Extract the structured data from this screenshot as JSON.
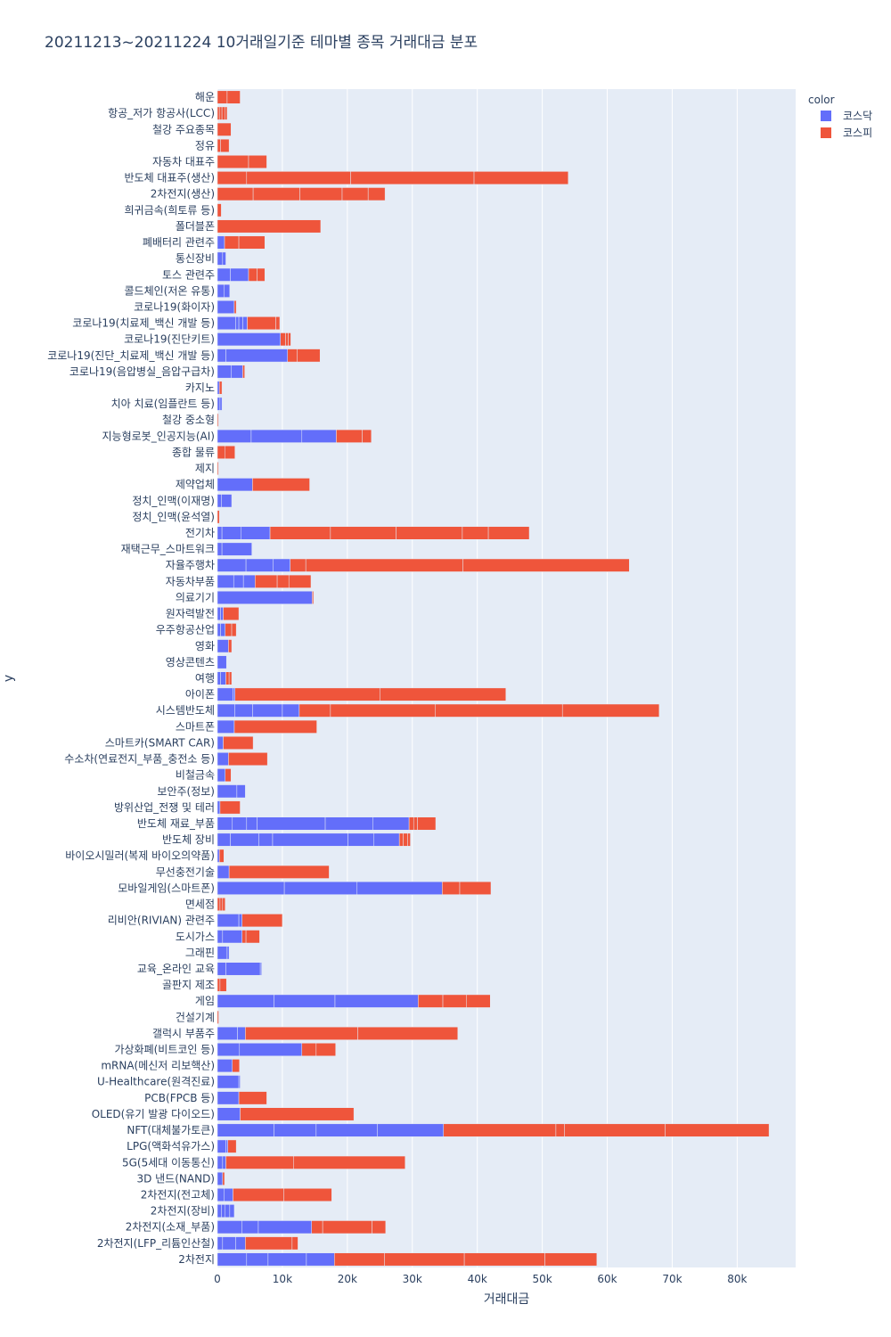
{
  "chart_data": {
    "type": "bar",
    "orientation": "horizontal",
    "barmode": "stack",
    "title": "20211213~20211224 10거래일기준 테마별 종목 거래대금 분포",
    "xlabel": "거래대금",
    "ylabel": "y",
    "xlim": [
      0,
      89000
    ],
    "xticks": [
      0,
      10000,
      20000,
      30000,
      40000,
      50000,
      60000,
      70000,
      80000
    ],
    "xtick_labels": [
      "0",
      "10k",
      "20k",
      "30k",
      "40k",
      "50k",
      "60k",
      "70k",
      "80k"
    ],
    "grid": true,
    "legend": {
      "title": "color",
      "placement": "top-right"
    },
    "series": [
      {
        "name": "코스닥",
        "color": "#636efa"
      },
      {
        "name": "코스피",
        "color": "#ef553b"
      }
    ],
    "categories": [
      {
        "label": "해운",
        "kosdaq": [],
        "kospi": [
          1500,
          2000
        ]
      },
      {
        "label": "항공_저가 항공사(LCC)",
        "kosdaq": [],
        "kospi": [
          300,
          400,
          500,
          300
        ]
      },
      {
        "label": "철강 주요종목",
        "kosdaq": [],
        "kospi": [
          2100
        ]
      },
      {
        "label": "정유",
        "kosdaq": [],
        "kospi": [
          500,
          1300
        ]
      },
      {
        "label": "자동차 대표주",
        "kosdaq": [],
        "kospi": [
          4800,
          2800
        ]
      },
      {
        "label": "반도체 대표주(생산)",
        "kosdaq": [],
        "kospi": [
          4500,
          16000,
          19000,
          14500
        ]
      },
      {
        "label": "2차전지(생산)",
        "kosdaq": [],
        "kospi": [
          5500,
          7200,
          6500,
          4000,
          2600
        ]
      },
      {
        "label": "희귀금속(희토류 등)",
        "kosdaq": [],
        "kospi": [
          600
        ]
      },
      {
        "label": "폴더블폰",
        "kosdaq": [],
        "kospi": [
          15900
        ]
      },
      {
        "label": "폐배터리 관련주",
        "kosdaq": [
          1100
        ],
        "kospi": [
          2200,
          4000
        ]
      },
      {
        "label": "통신장비",
        "kosdaq": [
          800,
          500
        ],
        "kospi": []
      },
      {
        "label": "토스 관련주",
        "kosdaq": [
          2000,
          2800
        ],
        "kospi": [
          1300,
          1200
        ]
      },
      {
        "label": "콜드체인(저온 유통)",
        "kosdaq": [
          1000,
          900
        ],
        "kospi": []
      },
      {
        "label": "코로나19(화이자)",
        "kosdaq": [
          2600
        ],
        "kospi": [
          300
        ]
      },
      {
        "label": "코로나19(치료제_백신 개발 등)",
        "kosdaq": [
          2800,
          500,
          600,
          700
        ],
        "kospi": [
          4400,
          600
        ]
      },
      {
        "label": "코로나19(진단키트)",
        "kosdaq": [
          9700
        ],
        "kospi": [
          800,
          400,
          400
        ]
      },
      {
        "label": "코로나19(진단_치료제_백신 개발 등)",
        "kosdaq": [
          1300,
          9500
        ],
        "kospi": [
          1500,
          3500
        ]
      },
      {
        "label": "코로나19(음압병실_음압구급차)",
        "kosdaq": [
          2100,
          1800
        ],
        "kospi": [
          300
        ]
      },
      {
        "label": "카지노",
        "kosdaq": [
          300
        ],
        "kospi": [
          400
        ]
      },
      {
        "label": "치아 치료(임플란트 등)",
        "kosdaq": [
          400,
          300
        ],
        "kospi": []
      },
      {
        "label": "철강 중소형",
        "kosdaq": [],
        "kospi": [
          150
        ]
      },
      {
        "label": "지능형로봇_인공지능(AI)",
        "kosdaq": [
          5200,
          7800,
          5300
        ],
        "kospi": [
          4000,
          1400
        ]
      },
      {
        "label": "종합 물류",
        "kosdaq": [],
        "kospi": [
          1200,
          1500
        ]
      },
      {
        "label": "제지",
        "kosdaq": [],
        "kospi": [
          150
        ]
      },
      {
        "label": "제약업체",
        "kosdaq": [
          5400
        ],
        "kospi": [
          8800
        ]
      },
      {
        "label": "정치_인맥(이재명)",
        "kosdaq": [
          600,
          1600
        ],
        "kospi": []
      },
      {
        "label": "정치_인맥(윤석열)",
        "kosdaq": [],
        "kospi": [
          300
        ]
      },
      {
        "label": "전기차",
        "kosdaq": [
          700,
          2900,
          4500
        ],
        "kospi": [
          9300,
          10100,
          10200,
          4000,
          6300
        ]
      },
      {
        "label": "재택근무_스마트워크",
        "kosdaq": [
          700,
          4600
        ],
        "kospi": []
      },
      {
        "label": "자율주행차",
        "kosdaq": [
          4400,
          4200,
          2600
        ],
        "kospi": [
          2400,
          24200,
          25600
        ]
      },
      {
        "label": "자동차부품",
        "kosdaq": [
          2500,
          1500,
          1800
        ],
        "kospi": [
          3400,
          1800,
          3400
        ]
      },
      {
        "label": "의료기기",
        "kosdaq": [
          14600
        ],
        "kospi": [
          200
        ]
      },
      {
        "label": "원자력발전",
        "kosdaq": [
          500,
          400
        ],
        "kospi": [
          2400
        ]
      },
      {
        "label": "우주항공산업",
        "kosdaq": [
          500,
          700
        ],
        "kospi": [
          1000,
          700
        ]
      },
      {
        "label": "영화",
        "kosdaq": [
          1700
        ],
        "kospi": [
          500
        ]
      },
      {
        "label": "영상콘텐츠",
        "kosdaq": [
          1400
        ],
        "kospi": []
      },
      {
        "label": "여행",
        "kosdaq": [
          500,
          800
        ],
        "kospi": [
          500,
          400
        ]
      },
      {
        "label": "아이폰",
        "kosdaq": [
          2400,
          300
        ],
        "kospi": [
          22300,
          19400
        ]
      },
      {
        "label": "시스템반도체",
        "kosdaq": [
          2700,
          2700,
          4600,
          2600
        ],
        "kospi": [
          4800,
          16100,
          19600,
          14900
        ]
      },
      {
        "label": "스마트폰",
        "kosdaq": [
          2600
        ],
        "kospi": [
          12700
        ]
      },
      {
        "label": "스마트카(SMART CAR)",
        "kosdaq": [
          900
        ],
        "kospi": [
          4600
        ]
      },
      {
        "label": "수소차(연료전지_부품_충전소 등)",
        "kosdaq": [
          1700
        ],
        "kospi": [
          6000
        ]
      },
      {
        "label": "비철금속",
        "kosdaq": [
          1200
        ],
        "kospi": [
          900
        ]
      },
      {
        "label": "보안주(정보)",
        "kosdaq": [
          3000,
          1300
        ],
        "kospi": []
      },
      {
        "label": "방위산업_전쟁 및 테러",
        "kosdaq": [
          400
        ],
        "kospi": [
          3100
        ]
      },
      {
        "label": "반도체 재료_부품",
        "kosdaq": [
          2300,
          2200,
          1600,
          10500,
          7300,
          5600
        ],
        "kospi": [
          700,
          600,
          2800
        ]
      },
      {
        "label": "반도체 장비",
        "kosdaq": [
          2000,
          4400,
          2100,
          11600,
          4000,
          3900
        ],
        "kospi": [
          600,
          700,
          400
        ]
      },
      {
        "label": "바이오시밀러(복제 바이오의약품)",
        "kosdaq": [
          300
        ],
        "kospi": [
          700
        ]
      },
      {
        "label": "무선충전기술",
        "kosdaq": [
          1800
        ],
        "kospi": [
          15400
        ]
      },
      {
        "label": "모바일게임(스마트폰)",
        "kosdaq": [
          10300,
          11200,
          13100
        ],
        "kospi": [
          2700,
          4800
        ]
      },
      {
        "label": "면세점",
        "kosdaq": [],
        "kospi": [
          400,
          400,
          400
        ]
      },
      {
        "label": "리비안(RIVIAN) 관련주",
        "kosdaq": [
          3300,
          500
        ],
        "kospi": [
          6200
        ]
      },
      {
        "label": "도시가스",
        "kosdaq": [
          800,
          3000
        ],
        "kospi": [
          600,
          2100
        ]
      },
      {
        "label": "그래핀",
        "kosdaq": [
          1500,
          300
        ],
        "kospi": []
      },
      {
        "label": "교육_온라인 교육",
        "kosdaq": [
          1300,
          5300,
          200
        ],
        "kospi": []
      },
      {
        "label": "골판지 제조",
        "kosdaq": [],
        "kospi": [
          400,
          1000
        ]
      },
      {
        "label": "게임",
        "kosdaq": [
          8700,
          9400,
          12800
        ],
        "kospi": [
          3800,
          3600,
          3700
        ]
      },
      {
        "label": "건설기계",
        "kosdaq": [],
        "kospi": [
          200
        ]
      },
      {
        "label": "갤럭시 부품주",
        "kosdaq": [
          3100,
          1200
        ],
        "kospi": [
          17300,
          15400
        ]
      },
      {
        "label": "가상화폐(비트코인 등)",
        "kosdaq": [
          3400,
          9600
        ],
        "kospi": [
          2200,
          3000
        ]
      },
      {
        "label": "mRNA(메신저 리보핵산)",
        "kosdaq": [
          2300
        ],
        "kospi": [
          1100
        ]
      },
      {
        "label": "U-Healthcare(원격진료)",
        "kosdaq": [
          3300,
          200
        ],
        "kospi": []
      },
      {
        "label": "PCB(FPCB 등)",
        "kosdaq": [
          3300
        ],
        "kospi": [
          4300
        ]
      },
      {
        "label": "OLED(유기 발광 다이오드)",
        "kosdaq": [
          3500
        ],
        "kospi": [
          17500
        ]
      },
      {
        "label": "NFT(대체불가토큰)",
        "kosdaq": [
          8700,
          6500,
          9400,
          10200
        ],
        "kospi": [
          17300,
          1300,
          15500,
          16000
        ]
      },
      {
        "label": "LPG(액화석유가스)",
        "kosdaq": [
          1300,
          300
        ],
        "kospi": [
          1300
        ]
      },
      {
        "label": "5G(5세대 이동통신)",
        "kosdaq": [
          800,
          500
        ],
        "kospi": [
          10400,
          17200
        ]
      },
      {
        "label": "3D 낸드(NAND)",
        "kosdaq": [
          800
        ],
        "kospi": [
          300
        ]
      },
      {
        "label": "2차전지(전고체)",
        "kosdaq": [
          1000,
          1400
        ],
        "kospi": [
          7800,
          7400
        ]
      },
      {
        "label": "2차전지(장비)",
        "kosdaq": [
          600,
          600,
          700,
          700
        ],
        "kospi": []
      },
      {
        "label": "2차전지(소재_부품)",
        "kosdaq": [
          3800,
          2500,
          8200
        ],
        "kospi": [
          1700,
          7600,
          2100
        ]
      },
      {
        "label": "2차전지(LFP_리튬인산철)",
        "kosdaq": [
          800,
          2000,
          1500
        ],
        "kospi": [
          7200,
          900
        ]
      },
      {
        "label": "2차전지",
        "kosdaq": [
          4500,
          3300,
          5900,
          4300
        ],
        "kospi": [
          7700,
          12300,
          12400,
          8000
        ]
      }
    ]
  }
}
